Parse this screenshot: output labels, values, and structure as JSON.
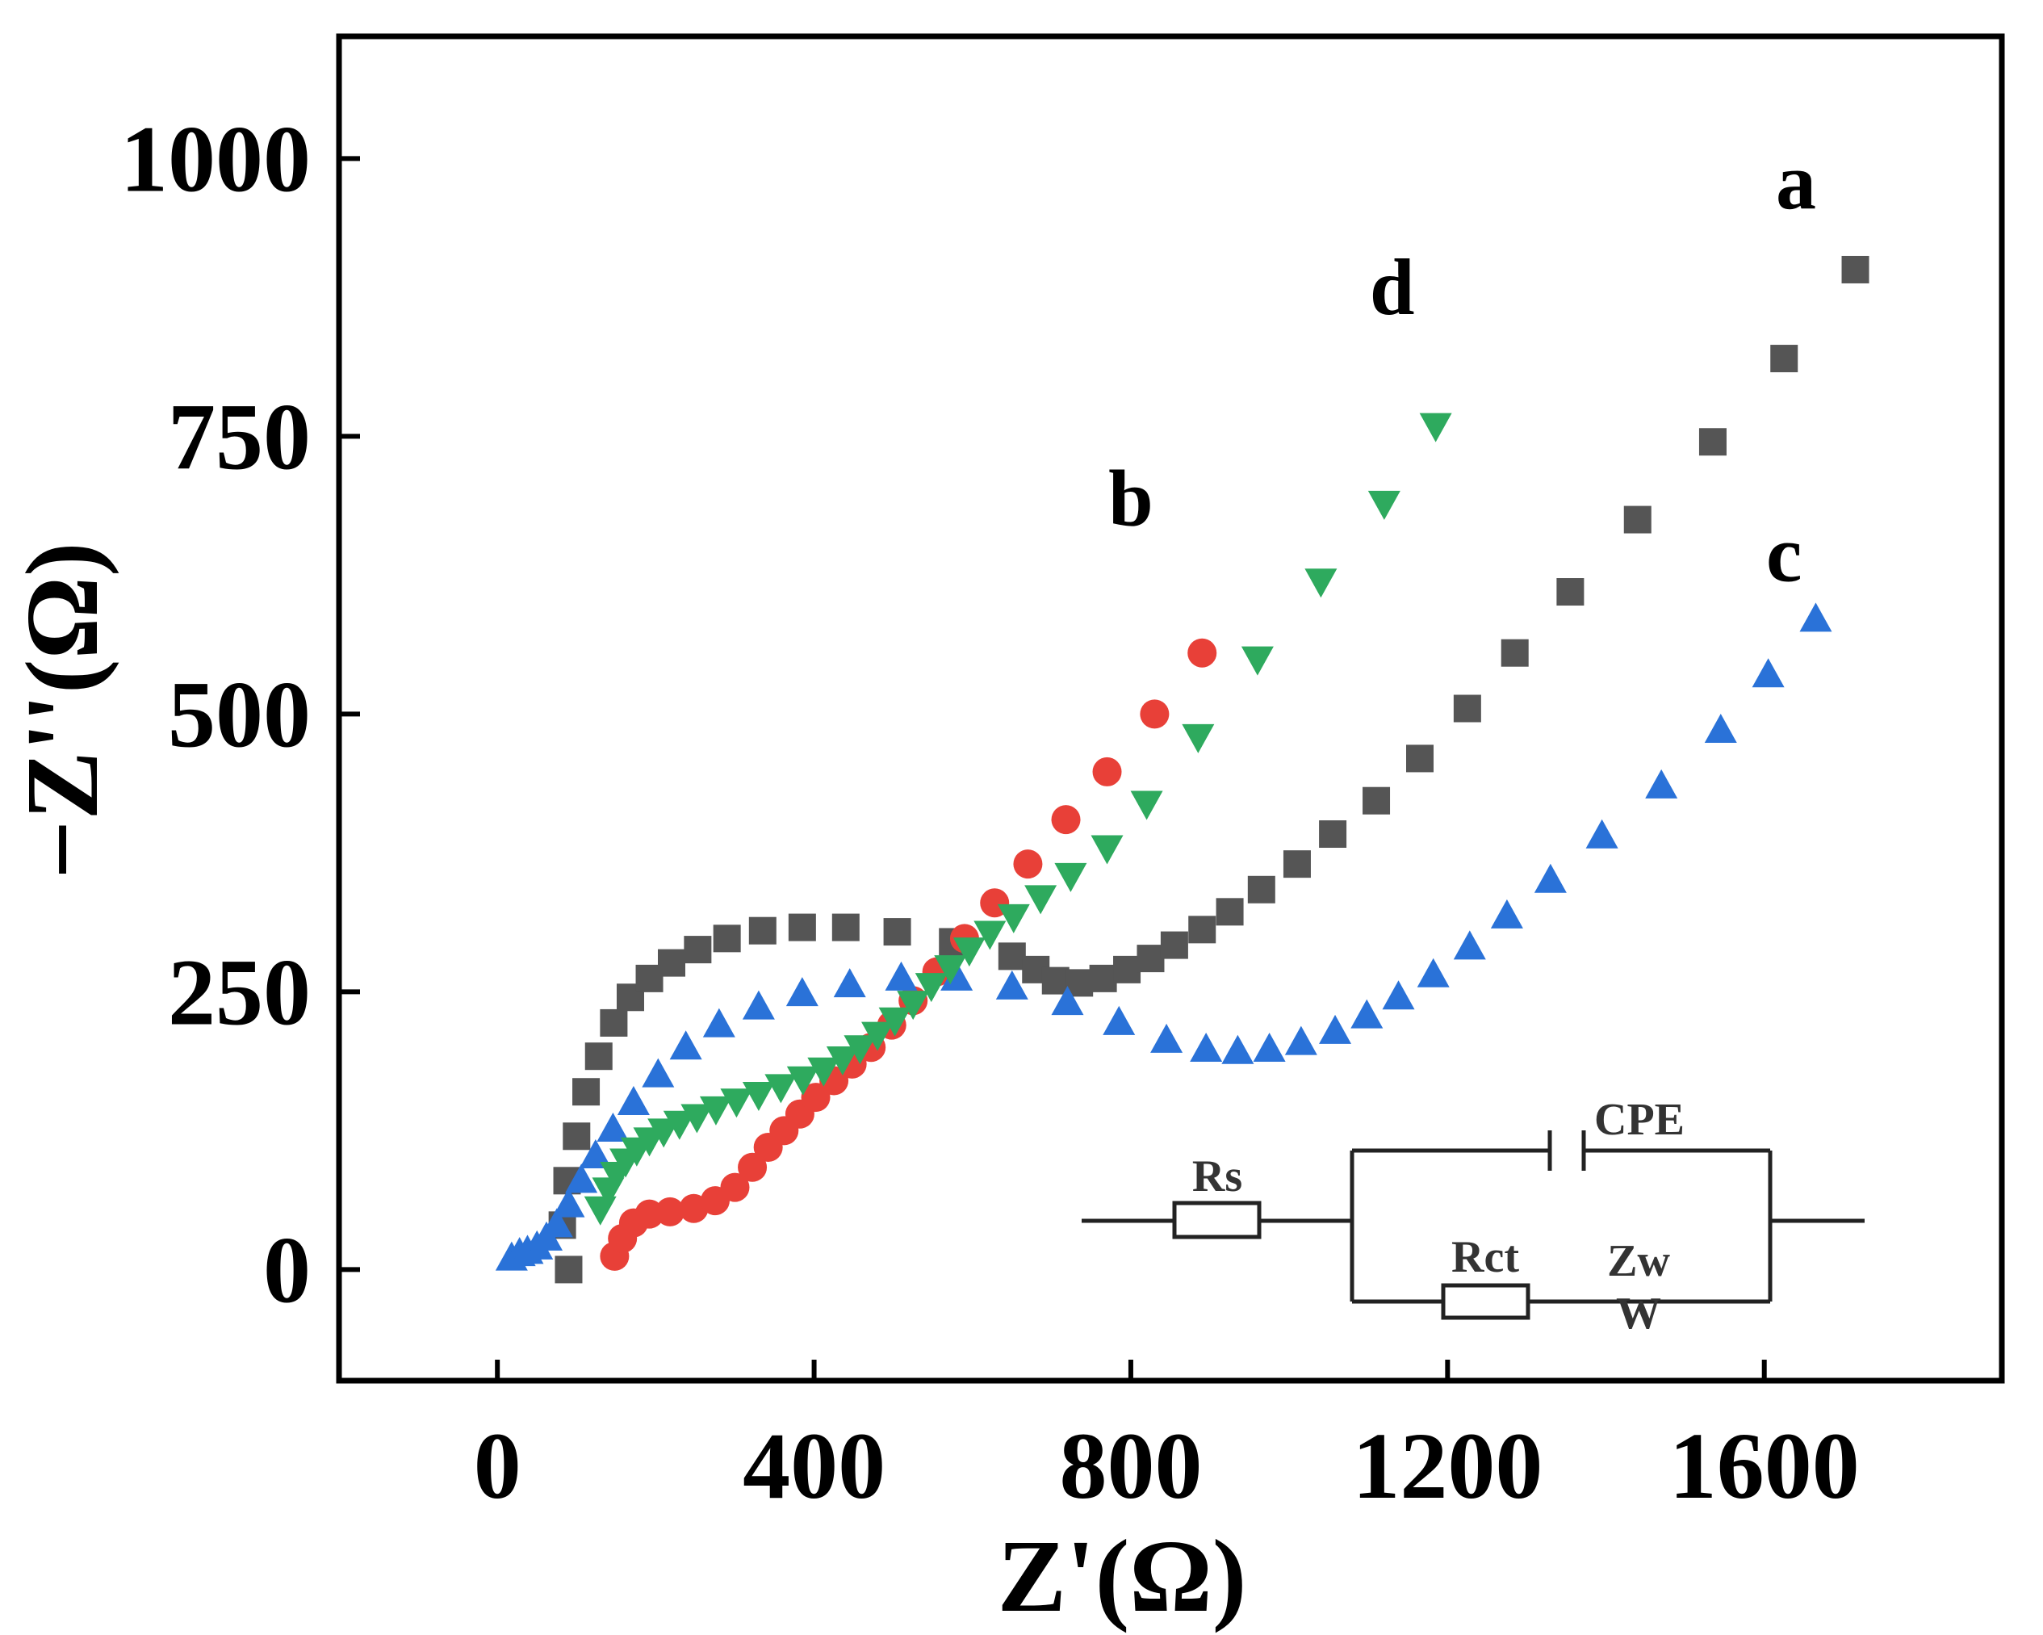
{
  "chart_data": {
    "type": "scatter",
    "title": "",
    "xlabel": "Z'(Ω)",
    "ylabel": "−Z''(Ω)",
    "xlim": [
      -200,
      1900
    ],
    "ylim": [
      -100,
      1110
    ],
    "xticks": [
      0,
      400,
      800,
      1200,
      1600
    ],
    "yticks": [
      0,
      250,
      500,
      750,
      1000
    ],
    "xtick_labels": [
      "0",
      "400",
      "800",
      "1200",
      "1600"
    ],
    "ytick_labels": [
      "0",
      "250",
      "500",
      "750",
      "1000"
    ],
    "series": [
      {
        "name": "a",
        "marker": "square",
        "color": "#555555",
        "label_pos": [
          1640,
          955
        ],
        "x": [
          90,
          82,
          88,
          100,
          112,
          128,
          147,
          168,
          192,
          220,
          253,
          290,
          335,
          385,
          440,
          505,
          575,
          650,
          680,
          705,
          735,
          765,
          795,
          825,
          855,
          890,
          925,
          965,
          1010,
          1055,
          1110,
          1165,
          1225,
          1285,
          1355,
          1440,
          1535,
          1625,
          1715
        ],
        "y": [
          0,
          40,
          80,
          120,
          160,
          192,
          222,
          245,
          262,
          276,
          288,
          298,
          305,
          308,
          308,
          304,
          295,
          282,
          270,
          260,
          258,
          262,
          270,
          280,
          292,
          306,
          322,
          342,
          365,
          392,
          422,
          460,
          505,
          555,
          610,
          675,
          745,
          820,
          900
        ]
      },
      {
        "name": "b",
        "marker": "circle",
        "color": "#e84038",
        "label_pos": [
          800,
          670
        ],
        "x": [
          148,
          158,
          172,
          192,
          218,
          248,
          275,
          300,
          322,
          342,
          362,
          382,
          402,
          425,
          448,
          472,
          498,
          525,
          555,
          590,
          628,
          670,
          718,
          770,
          830,
          890
        ],
        "y": [
          12,
          28,
          42,
          50,
          52,
          55,
          62,
          74,
          92,
          110,
          125,
          140,
          155,
          170,
          185,
          200,
          220,
          242,
          268,
          298,
          330,
          365,
          405,
          448,
          500,
          555
        ]
      },
      {
        "name": "c",
        "marker": "triangle-up",
        "color": "#2a72d8",
        "label_pos": [
          1625,
          620
        ],
        "x": [
          18,
          28,
          38,
          50,
          62,
          75,
          90,
          106,
          124,
          146,
          172,
          203,
          238,
          280,
          330,
          385,
          445,
          510,
          580,
          650,
          720,
          785,
          845,
          895,
          935,
          975,
          1015,
          1058,
          1098,
          1138,
          1182,
          1228,
          1275,
          1330,
          1395,
          1470,
          1545,
          1605,
          1665
        ],
        "y": [
          10,
          14,
          16,
          20,
          28,
          40,
          58,
          80,
          102,
          126,
          150,
          175,
          200,
          220,
          236,
          248,
          256,
          262,
          262,
          254,
          240,
          222,
          206,
          198,
          196,
          198,
          204,
          214,
          228,
          245,
          265,
          290,
          318,
          350,
          390,
          435,
          485,
          535,
          585
        ]
      },
      {
        "name": "d",
        "marker": "triangle-down",
        "color": "#2eaa5e",
        "label_pos": [
          1130,
          860
        ],
        "x": [
          130,
          140,
          150,
          162,
          176,
          192,
          210,
          230,
          252,
          276,
          302,
          330,
          358,
          386,
          412,
          436,
          458,
          480,
          502,
          525,
          548,
          572,
          596,
          622,
          652,
          686,
          724,
          770,
          820,
          885,
          960,
          1040,
          1120,
          1185
        ],
        "y": [
          55,
          72,
          86,
          98,
          108,
          117,
          125,
          132,
          138,
          145,
          152,
          158,
          165,
          172,
          180,
          190,
          200,
          212,
          225,
          240,
          256,
          272,
          288,
          303,
          318,
          335,
          355,
          380,
          420,
          480,
          550,
          620,
          690,
          760
        ]
      }
    ],
    "inset_circuit": {
      "labels": [
        "Rs",
        "CPE",
        "Rct",
        "Zw",
        "W"
      ]
    }
  }
}
